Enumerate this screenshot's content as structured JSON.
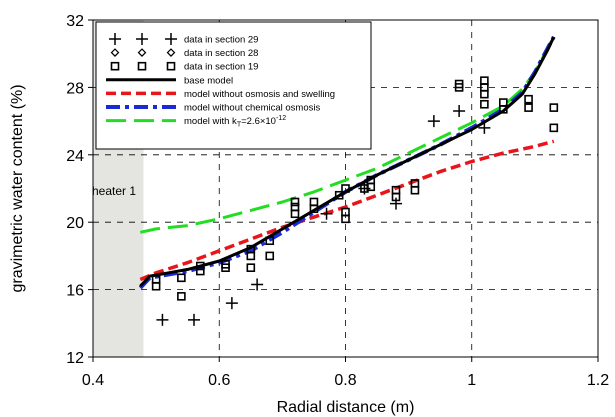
{
  "chart_data": {
    "type": "scatter",
    "xlabel": "Radial distance (m)",
    "ylabel": "gravimetric water content (%)",
    "xlim": [
      0.4,
      1.2
    ],
    "ylim": [
      12,
      32
    ],
    "xticks": [
      "0.4",
      "0.6",
      "0.8",
      "1",
      "1.2"
    ],
    "yticks": [
      "12",
      "16",
      "20",
      "24",
      "28",
      "32"
    ],
    "xtick_values": [
      0.4,
      0.6,
      0.8,
      1.0,
      1.2
    ],
    "ytick_values": [
      12,
      16,
      20,
      24,
      28,
      32
    ],
    "grid": "dashed",
    "legend_position": "top-left",
    "annotation": "heater 1",
    "heater_zone": [
      0.4,
      0.48
    ],
    "series": [
      {
        "name": "data in section 29",
        "marker": "plus",
        "points": [
          [
            0.51,
            14.2
          ],
          [
            0.56,
            14.2
          ],
          [
            0.62,
            15.2
          ],
          [
            0.66,
            16.3
          ],
          [
            0.77,
            20.5
          ],
          [
            0.83,
            22.0
          ],
          [
            0.88,
            21.1
          ],
          [
            0.94,
            26.0
          ],
          [
            0.98,
            26.6
          ],
          [
            1.02,
            25.6
          ]
        ]
      },
      {
        "name": "data in section 28",
        "marker": "diamond",
        "points": []
      },
      {
        "name": "data in section 19",
        "marker": "square",
        "points": [
          [
            0.5,
            16.2
          ],
          [
            0.5,
            16.6
          ],
          [
            0.54,
            15.6
          ],
          [
            0.54,
            16.7
          ],
          [
            0.57,
            17.1
          ],
          [
            0.57,
            17.4
          ],
          [
            0.61,
            17.5
          ],
          [
            0.61,
            17.3
          ],
          [
            0.65,
            17.3
          ],
          [
            0.65,
            18.0
          ],
          [
            0.65,
            18.4
          ],
          [
            0.68,
            18.0
          ],
          [
            0.68,
            18.9
          ],
          [
            0.72,
            20.5
          ],
          [
            0.72,
            20.9
          ],
          [
            0.72,
            21.2
          ],
          [
            0.75,
            20.8
          ],
          [
            0.75,
            21.2
          ],
          [
            0.79,
            21.6
          ],
          [
            0.8,
            20.2
          ],
          [
            0.8,
            20.6
          ],
          [
            0.8,
            22.0
          ],
          [
            0.83,
            22.0
          ],
          [
            0.84,
            22.1
          ],
          [
            0.84,
            22.5
          ],
          [
            0.88,
            21.5
          ],
          [
            0.88,
            21.9
          ],
          [
            0.91,
            21.9
          ],
          [
            0.91,
            22.3
          ],
          [
            0.98,
            28.0
          ],
          [
            0.98,
            28.2
          ],
          [
            1.02,
            28.0
          ],
          [
            1.02,
            28.4
          ],
          [
            1.02,
            27.6
          ],
          [
            1.02,
            27.0
          ],
          [
            1.05,
            26.7
          ],
          [
            1.05,
            27.1
          ],
          [
            1.09,
            26.8
          ],
          [
            1.09,
            27.3
          ],
          [
            1.13,
            26.8
          ],
          [
            1.13,
            25.6
          ]
        ]
      },
      {
        "name": "base model",
        "line": "solid",
        "color": "#000000",
        "points": [
          [
            0.475,
            16.2
          ],
          [
            0.49,
            16.8
          ],
          [
            0.52,
            17.0
          ],
          [
            0.55,
            17.2
          ],
          [
            0.6,
            17.7
          ],
          [
            0.65,
            18.5
          ],
          [
            0.7,
            19.6
          ],
          [
            0.75,
            20.7
          ],
          [
            0.8,
            21.8
          ],
          [
            0.85,
            22.8
          ],
          [
            0.9,
            23.7
          ],
          [
            0.95,
            24.6
          ],
          [
            1.0,
            25.5
          ],
          [
            1.05,
            26.6
          ],
          [
            1.08,
            27.6
          ],
          [
            1.1,
            28.8
          ],
          [
            1.12,
            30.2
          ],
          [
            1.13,
            31.0
          ]
        ]
      },
      {
        "name": "model without osmosis and swelling",
        "line": "dashed",
        "color": "#e8151b",
        "points": [
          [
            0.475,
            16.6
          ],
          [
            0.5,
            17.0
          ],
          [
            0.55,
            17.6
          ],
          [
            0.6,
            18.3
          ],
          [
            0.65,
            19.0
          ],
          [
            0.7,
            19.7
          ],
          [
            0.75,
            20.3
          ],
          [
            0.8,
            20.9
          ],
          [
            0.85,
            21.6
          ],
          [
            0.9,
            22.3
          ],
          [
            0.95,
            23.0
          ],
          [
            1.0,
            23.6
          ],
          [
            1.05,
            24.1
          ],
          [
            1.1,
            24.5
          ],
          [
            1.13,
            24.8
          ]
        ]
      },
      {
        "name": "model without chemical osmosis",
        "line": "dashdot",
        "color": "#1a2bd6",
        "points": [
          [
            0.475,
            16.1
          ],
          [
            0.49,
            16.7
          ],
          [
            0.52,
            16.9
          ],
          [
            0.55,
            17.1
          ],
          [
            0.6,
            17.6
          ],
          [
            0.65,
            18.3
          ],
          [
            0.7,
            19.4
          ],
          [
            0.75,
            20.6
          ],
          [
            0.8,
            21.8
          ],
          [
            0.85,
            22.8
          ],
          [
            0.9,
            23.7
          ],
          [
            0.95,
            24.6
          ],
          [
            1.0,
            25.6
          ],
          [
            1.05,
            26.7
          ],
          [
            1.08,
            27.7
          ],
          [
            1.1,
            28.9
          ],
          [
            1.12,
            30.3
          ],
          [
            1.13,
            31.0
          ]
        ]
      },
      {
        "name": "model with k",
        "name_sub": "T",
        "name_tail": "=2.6×10",
        "name_sup": "-12",
        "line": "longdash",
        "color": "#22dd22",
        "points": [
          [
            0.475,
            19.4
          ],
          [
            0.5,
            19.6
          ],
          [
            0.55,
            19.8
          ],
          [
            0.6,
            20.2
          ],
          [
            0.65,
            20.7
          ],
          [
            0.7,
            21.2
          ],
          [
            0.75,
            21.8
          ],
          [
            0.8,
            22.5
          ],
          [
            0.85,
            23.2
          ],
          [
            0.9,
            24.1
          ],
          [
            0.95,
            25.0
          ],
          [
            1.0,
            25.9
          ],
          [
            1.05,
            26.9
          ],
          [
            1.08,
            27.9
          ],
          [
            1.1,
            28.9
          ],
          [
            1.12,
            30.3
          ],
          [
            1.13,
            31.0
          ]
        ]
      }
    ]
  }
}
